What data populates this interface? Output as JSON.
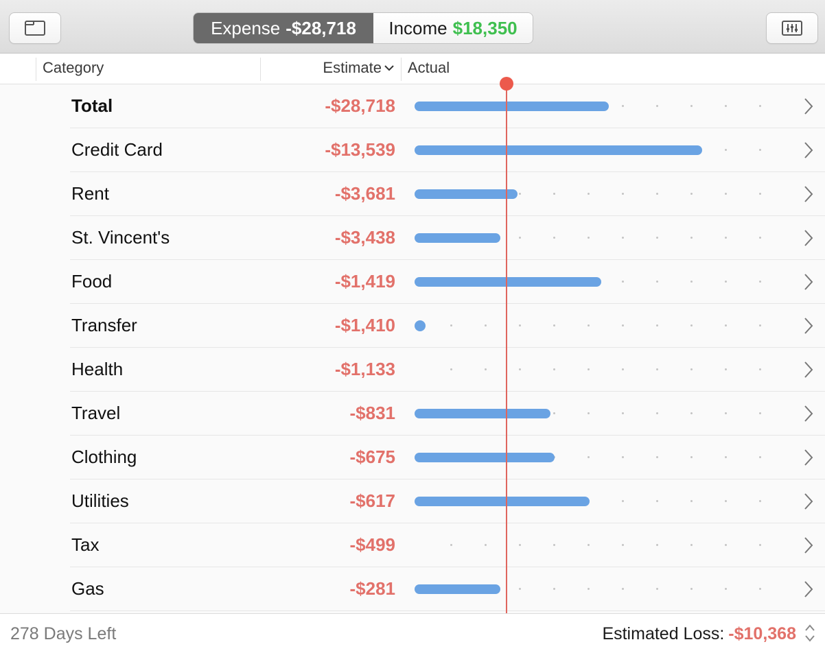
{
  "toolbar": {
    "left_button_icon": "sidebar-icon",
    "right_button_icon": "sliders-icon",
    "segments": {
      "expense_label": "Expense",
      "expense_value": "-$28,718",
      "income_label": "Income",
      "income_value": "$18,350"
    }
  },
  "columns": {
    "category": "Category",
    "estimate": "Estimate",
    "actual": "Actual"
  },
  "rows": [
    {
      "name": "Total",
      "estimate": "-$28,718",
      "actual_fraction": 0.5,
      "bold": true
    },
    {
      "name": "Credit Card",
      "estimate": "-$13,539",
      "actual_fraction": 0.74
    },
    {
      "name": "Rent",
      "estimate": "-$3,681",
      "actual_fraction": 0.265
    },
    {
      "name": "St. Vincent's",
      "estimate": "-$3,438",
      "actual_fraction": 0.22
    },
    {
      "name": "Food",
      "estimate": "-$1,419",
      "actual_fraction": 0.48
    },
    {
      "name": "Transfer",
      "estimate": "-$1,410",
      "actual_fraction": 0.0
    },
    {
      "name": "Health",
      "estimate": "-$1,133",
      "actual_fraction": null
    },
    {
      "name": "Travel",
      "estimate": "-$831",
      "actual_fraction": 0.35
    },
    {
      "name": "Clothing",
      "estimate": "-$675",
      "actual_fraction": 0.36
    },
    {
      "name": "Utilities",
      "estimate": "-$617",
      "actual_fraction": 0.45
    },
    {
      "name": "Tax",
      "estimate": "-$499",
      "actual_fraction": null
    },
    {
      "name": "Gas",
      "estimate": "-$281",
      "actual_fraction": 0.22
    }
  ],
  "timeline_marker_fraction": 0.235,
  "footer": {
    "days_left": "278 Days Left",
    "loss_label": "Estimated Loss:",
    "loss_value": "-$10,368"
  },
  "colors": {
    "bar": "#6aa3e3",
    "negative": "#e2716a",
    "positive": "#3fbf4f",
    "marker": "#ec5a4c"
  }
}
